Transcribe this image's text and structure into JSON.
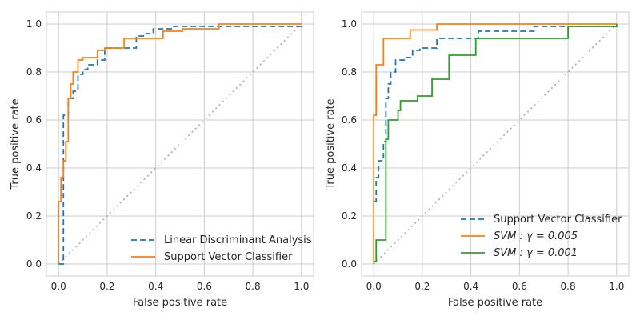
{
  "chart_data": [
    {
      "type": "line",
      "title": "",
      "xlabel": "False positive rate",
      "ylabel": "True positive rate",
      "xlim": [
        -0.05,
        1.05
      ],
      "ylim": [
        -0.05,
        1.05
      ],
      "xticks": [
        0.0,
        0.2,
        0.4,
        0.6,
        0.8,
        1.0
      ],
      "yticks": [
        0.0,
        0.2,
        0.4,
        0.6,
        0.8,
        1.0
      ],
      "xtick_labels": [
        "0.0",
        "0.2",
        "0.4",
        "0.6",
        "0.8",
        "1.0"
      ],
      "ytick_labels": [
        "0.0",
        "0.2",
        "0.4",
        "0.6",
        "0.8",
        "1.0"
      ],
      "grid": true,
      "legend_position": "lower-right",
      "reference_line": {
        "x": [
          0,
          1
        ],
        "y": [
          0,
          1
        ],
        "color": "#aaaaaa",
        "style": "dotted"
      },
      "series": [
        {
          "name": "Linear Discriminant Analysis",
          "color": "#1f77b4",
          "style": "dashed",
          "x": [
            0.0,
            0.0,
            0.02,
            0.02,
            0.04,
            0.04,
            0.06,
            0.06,
            0.08,
            0.08,
            0.1,
            0.1,
            0.12,
            0.12,
            0.16,
            0.16,
            0.19,
            0.19,
            0.32,
            0.32,
            0.36,
            0.36,
            0.39,
            0.39,
            0.47,
            0.47,
            0.51,
            0.51,
            0.66,
            0.66,
            1.0,
            1.0
          ],
          "y": [
            0.0,
            0.0,
            0.0,
            0.62,
            0.62,
            0.69,
            0.69,
            0.72,
            0.72,
            0.79,
            0.79,
            0.81,
            0.81,
            0.83,
            0.83,
            0.85,
            0.85,
            0.9,
            0.9,
            0.95,
            0.95,
            0.96,
            0.96,
            0.98,
            0.98,
            0.99,
            0.99,
            0.99,
            0.99,
            0.99,
            0.99,
            1.0
          ]
        },
        {
          "name": "Support Vector Classifier",
          "color": "#ff7f0e",
          "style": "solid",
          "x": [
            0.0,
            0.0,
            0.01,
            0.01,
            0.02,
            0.02,
            0.03,
            0.03,
            0.04,
            0.04,
            0.05,
            0.05,
            0.06,
            0.06,
            0.08,
            0.08,
            0.1,
            0.1,
            0.16,
            0.16,
            0.19,
            0.19,
            0.27,
            0.27,
            0.43,
            0.43,
            0.51,
            0.51,
            0.66,
            0.66,
            1.0
          ],
          "y": [
            0.0,
            0.26,
            0.26,
            0.36,
            0.36,
            0.43,
            0.43,
            0.51,
            0.51,
            0.69,
            0.69,
            0.75,
            0.75,
            0.8,
            0.8,
            0.85,
            0.85,
            0.86,
            0.86,
            0.89,
            0.89,
            0.9,
            0.9,
            0.94,
            0.94,
            0.97,
            0.97,
            0.98,
            0.98,
            1.0,
            1.0
          ]
        }
      ]
    },
    {
      "type": "line",
      "title": "",
      "xlabel": "False positive rate",
      "ylabel": "True positive rate",
      "xlim": [
        -0.05,
        1.05
      ],
      "ylim": [
        -0.05,
        1.05
      ],
      "xticks": [
        0.0,
        0.2,
        0.4,
        0.6,
        0.8,
        1.0
      ],
      "yticks": [
        0.0,
        0.2,
        0.4,
        0.6,
        0.8,
        1.0
      ],
      "xtick_labels": [
        "0.0",
        "0.2",
        "0.4",
        "0.6",
        "0.8",
        "1.0"
      ],
      "ytick_labels": [
        "0.0",
        "0.2",
        "0.4",
        "0.6",
        "0.8",
        "1.0"
      ],
      "grid": true,
      "legend_position": "lower-right",
      "reference_line": {
        "x": [
          0,
          1
        ],
        "y": [
          0,
          1
        ],
        "color": "#aaaaaa",
        "style": "dotted"
      },
      "series": [
        {
          "name": "Support Vector Classifier",
          "legend_math": false,
          "color": "#1f77b4",
          "style": "dashed",
          "x": [
            0.0,
            0.01,
            0.01,
            0.02,
            0.02,
            0.04,
            0.04,
            0.05,
            0.05,
            0.06,
            0.06,
            0.07,
            0.07,
            0.09,
            0.09,
            0.13,
            0.13,
            0.16,
            0.16,
            0.19,
            0.19,
            0.26,
            0.26,
            0.43,
            0.43,
            0.66,
            0.66,
            1.0,
            1.0
          ],
          "y": [
            0.26,
            0.26,
            0.36,
            0.36,
            0.43,
            0.43,
            0.51,
            0.51,
            0.69,
            0.69,
            0.75,
            0.75,
            0.8,
            0.8,
            0.85,
            0.85,
            0.86,
            0.86,
            0.89,
            0.89,
            0.9,
            0.9,
            0.94,
            0.94,
            0.97,
            0.97,
            0.99,
            0.99,
            1.0
          ]
        },
        {
          "name": "SVM : γ = 0.005",
          "legend_math": true,
          "color": "#ff7f0e",
          "style": "solid",
          "x": [
            0.0,
            0.0,
            0.01,
            0.01,
            0.04,
            0.04,
            0.15,
            0.15,
            0.26,
            0.26,
            0.4,
            0.4,
            1.0
          ],
          "y": [
            0.0,
            0.62,
            0.62,
            0.83,
            0.83,
            0.94,
            0.94,
            0.975,
            0.975,
            1.0,
            1.0,
            1.0,
            1.0
          ]
        },
        {
          "name": "SVM : γ = 0.001",
          "legend_math": true,
          "color": "#2ca02c",
          "style": "solid",
          "x": [
            0.0,
            0.01,
            0.01,
            0.05,
            0.05,
            0.06,
            0.06,
            0.1,
            0.1,
            0.11,
            0.11,
            0.18,
            0.18,
            0.24,
            0.24,
            0.31,
            0.31,
            0.42,
            0.42,
            0.8,
            0.8,
            1.0,
            1.0
          ],
          "y": [
            0.01,
            0.01,
            0.1,
            0.1,
            0.52,
            0.52,
            0.6,
            0.6,
            0.64,
            0.64,
            0.68,
            0.68,
            0.7,
            0.7,
            0.77,
            0.77,
            0.87,
            0.87,
            0.94,
            0.94,
            0.99,
            0.99,
            1.0
          ]
        }
      ]
    }
  ]
}
